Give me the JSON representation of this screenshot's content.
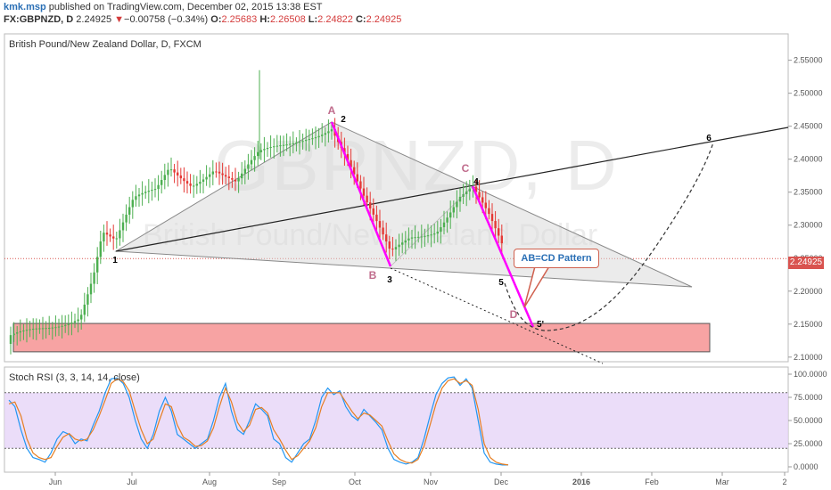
{
  "header": {
    "author": "kmk.msp",
    "published": "published on TradingView.com, December 02, 2015 13:38 EST",
    "symbol": "FX:GBPNZD, D",
    "last": "2.24925",
    "arrow": "▼",
    "change": "−0.00758 (−0.34%)",
    "o_label": "O:",
    "o": "2.25683",
    "h_label": "H:",
    "h": "2.26508",
    "l_label": "L:",
    "l": "2.24822",
    "c_label": "C:",
    "c": "2.24925"
  },
  "watermark": {
    "symbol": "GBPNZD, D",
    "name": "British Pound/New Zealand Dollar"
  },
  "chart_data": [
    {
      "type": "candlestick",
      "title": "British Pound/New Zealand Dollar, D, FXCM",
      "y_ticks": [
        "2.55000",
        "2.50000",
        "2.45000",
        "2.40000",
        "2.35000",
        "2.30000",
        "2.25000",
        "2.20000",
        "2.15000",
        "2.10000"
      ],
      "ylim": [
        2.093,
        2.59
      ],
      "x_ticks": [
        "Jun",
        "Jul",
        "Aug",
        "Sep",
        "Oct",
        "Nov",
        "Dec",
        "2016",
        "Feb",
        "Mar",
        "2"
      ],
      "last_price": "2.24925",
      "annotations": {
        "pattern_label": "AB=CD Pattern",
        "points": [
          "A",
          "B",
          "C",
          "D",
          "1",
          "2",
          "3",
          "4",
          "5",
          "5'",
          "6"
        ]
      },
      "zone": {
        "from": 2.108,
        "to": 2.151,
        "color": "#f7a3a3"
      },
      "colors": {
        "up": "#4caf50",
        "down": "#e53935",
        "abcd": "#ff00ff",
        "triangle": "#d8d8d8"
      }
    },
    {
      "type": "line",
      "title": "Stoch RSI (3, 3, 14, 14, close)",
      "y_ticks": [
        "100.0000",
        "75.0000",
        "50.0000",
        "25.0000",
        "0.0000"
      ],
      "ylim": [
        0,
        100
      ],
      "bands": [
        20,
        80
      ],
      "series": [
        {
          "values": [
            72,
            65,
            40,
            20,
            10,
            8,
            5,
            15,
            30,
            38,
            35,
            25,
            30,
            28,
            45,
            60,
            80,
            95,
            96,
            90,
            75,
            50,
            30,
            20,
            35,
            60,
            75,
            60,
            35,
            30,
            25,
            20,
            25,
            30,
            50,
            75,
            90,
            60,
            40,
            35,
            50,
            68,
            62,
            55,
            30,
            25,
            10,
            5,
            15,
            25,
            30,
            50,
            75,
            85,
            78,
            82,
            65,
            55,
            50,
            62,
            55,
            48,
            40,
            20,
            8,
            5,
            3,
            5,
            10,
            30,
            55,
            78,
            90,
            96,
            97,
            88,
            95,
            85,
            50,
            15,
            5,
            3,
            2,
            2
          ]
        },
        {
          "values": [
            68,
            70,
            55,
            30,
            15,
            10,
            8,
            10,
            22,
            32,
            36,
            30,
            28,
            30,
            40,
            55,
            72,
            90,
            95,
            92,
            82,
            60,
            40,
            25,
            30,
            50,
            68,
            65,
            45,
            32,
            28,
            22,
            23,
            28,
            42,
            65,
            85,
            70,
            48,
            38,
            45,
            62,
            64,
            58,
            40,
            30,
            18,
            8,
            12,
            20,
            28,
            42,
            65,
            80,
            80,
            80,
            70,
            60,
            52,
            58,
            56,
            50,
            44,
            28,
            14,
            8,
            5,
            4,
            8,
            22,
            45,
            68,
            85,
            93,
            95,
            90,
            93,
            88,
            62,
            25,
            10,
            5,
            3,
            2
          ]
        }
      ],
      "colors": {
        "k": "#2196f3",
        "d": "#e67e22",
        "band": "#e6d5f7"
      }
    }
  ]
}
